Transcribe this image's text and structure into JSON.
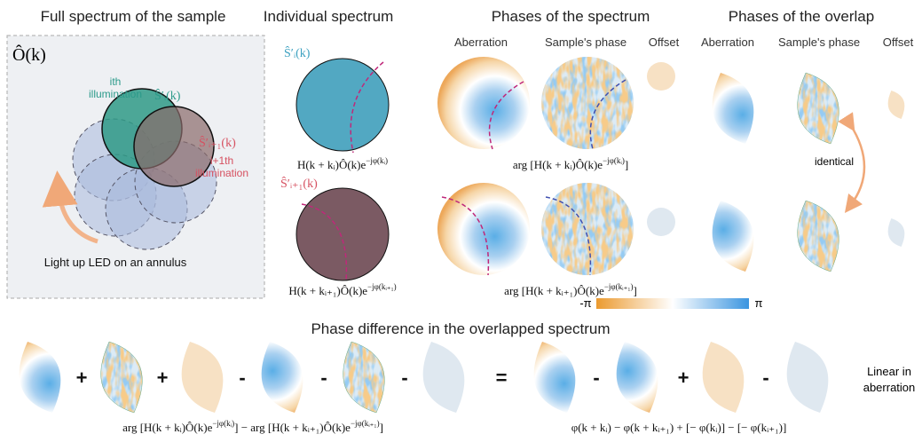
{
  "titles": {
    "full": "Full spectrum of the sample",
    "individual": "Individual spectrum",
    "phases": "Phases of the spectrum",
    "overlap": "Phases of the overlap",
    "difference": "Phase difference in the overlapped spectrum"
  },
  "full_spectrum": {
    "object": "Ô(k)",
    "illum_i": [
      "ith",
      "illumination"
    ],
    "spectrum_i": "Ŝ′ᵢ(k)",
    "spectrum_i1": "Ŝ′ᵢ₊₁(k)",
    "illum_i1": [
      "i+1th",
      "illumination"
    ],
    "caption": "Light up LED on an annulus"
  },
  "individual": {
    "label_i": "Ŝ′ᵢ(k)",
    "label_i1": "Ŝ′ᵢ₊₁(k)"
  },
  "column_heads": {
    "spectrum": [
      "Aberration",
      "Sample's phase",
      "Offset"
    ],
    "overlap": [
      "Aberration",
      "Sample's phase",
      "Offset"
    ]
  },
  "identical": "identical",
  "colorbar": {
    "min": "-π",
    "max": "π"
  },
  "operators": [
    "+",
    "+",
    "-",
    "-",
    "-",
    "=",
    "-",
    "+",
    "-"
  ],
  "note": [
    "Linear in",
    "aberration"
  ],
  "formulas": {
    "spec_i": [
      {
        "text": "H(k + kᵢ)Ô(k)e"
      },
      {
        "sup": "−jφ(kᵢ)"
      }
    ],
    "spec_i1": [
      {
        "text": "H(k + kᵢ₊₁)Ô(k)e"
      },
      {
        "sup": "−jφ(kᵢ₊₁)"
      }
    ],
    "arg_i": [
      {
        "text": "arg [H(k + kᵢ)Ô(k)e"
      },
      {
        "sup": "−jφ(kᵢ)"
      },
      {
        "text": "]"
      }
    ],
    "arg_i1": [
      {
        "text": "arg [H(k + kᵢ₊₁)Ô(k)e"
      },
      {
        "sup": "−jφ(kᵢ₊₁)"
      },
      {
        "text": "]"
      }
    ],
    "diff_left": [
      {
        "text": "arg [H(k + kᵢ)Ô(k)e"
      },
      {
        "sup": "−jφ(kᵢ)"
      },
      {
        "text": "] − arg [H(k + kᵢ₊₁)Ô(k)e"
      },
      {
        "sup": "−jφ(kᵢ₊₁)"
      },
      {
        "text": "]"
      }
    ],
    "diff_right": [
      {
        "text": "φ(k + kᵢ) − φ(k + kᵢ₊₁) + [− φ(kᵢ)] − [− φ(kᵢ₊₁)]"
      }
    ]
  }
}
